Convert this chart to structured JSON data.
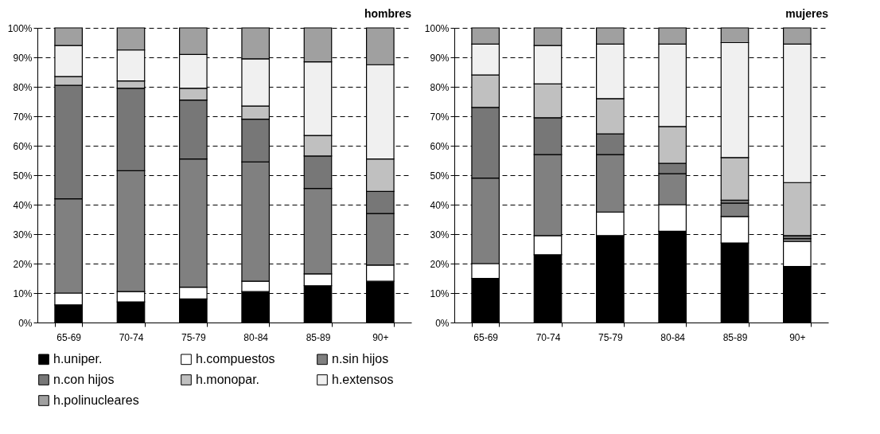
{
  "chart_data": [
    {
      "type": "bar",
      "title": "hombres",
      "stacked": true,
      "grid": "y",
      "legend": "bottom",
      "categories": [
        "65-69",
        "70-74",
        "75-79",
        "80-84",
        "85-89",
        "90+"
      ],
      "ylim": [
        0,
        100
      ],
      "yticks": [
        {
          "value": 0,
          "label": "0%"
        },
        {
          "value": 10,
          "label": "10%"
        },
        {
          "value": 20,
          "label": "20%"
        },
        {
          "value": 30,
          "label": "30%"
        },
        {
          "value": 40,
          "label": "40%"
        },
        {
          "value": 50,
          "label": "50%"
        },
        {
          "value": 60,
          "label": "60%"
        },
        {
          "value": 70,
          "label": "70%"
        },
        {
          "value": 80,
          "label": "80%"
        },
        {
          "value": 90,
          "label": "90%"
        },
        {
          "value": 100,
          "label": "100%"
        }
      ],
      "series": [
        {
          "name": "h.uniper.",
          "color": "#000000",
          "values": [
            6,
            7,
            8,
            10.5,
            12.5,
            14
          ]
        },
        {
          "name": "h.compuestos",
          "color": "#ffffff",
          "values": [
            4,
            3.5,
            4,
            3.5,
            4,
            5.5
          ]
        },
        {
          "name": "n.sin hijos",
          "color": "#808080",
          "values": [
            32,
            41,
            43.5,
            40.5,
            29,
            17.5
          ]
        },
        {
          "name": "n.con hijos",
          "color": "#777777",
          "values": [
            38.5,
            28,
            20,
            14.5,
            11,
            7.5
          ]
        },
        {
          "name": "h.monopar.",
          "color": "#c0c0c0",
          "values": [
            3,
            2.5,
            4,
            4.5,
            7,
            11
          ]
        },
        {
          "name": "h.extensos",
          "color": "#f0f0f0",
          "values": [
            10.5,
            10.5,
            11.5,
            16,
            25,
            32
          ]
        },
        {
          "name": "h.polinucleares",
          "color": "#a0a0a0",
          "values": [
            6,
            7.5,
            9,
            10.5,
            11.5,
            12.5
          ]
        }
      ]
    },
    {
      "type": "bar",
      "title": "mujeres",
      "stacked": true,
      "grid": "y",
      "categories": [
        "65-69",
        "70-74",
        "75-79",
        "80-84",
        "85-89",
        "90+"
      ],
      "ylim": [
        0,
        100
      ],
      "yticks": [
        {
          "value": 0,
          "label": "0%"
        },
        {
          "value": 10,
          "label": "10%"
        },
        {
          "value": 20,
          "label": "20%"
        },
        {
          "value": 30,
          "label": "30%"
        },
        {
          "value": 40,
          "label": "40%"
        },
        {
          "value": 50,
          "label": "50%"
        },
        {
          "value": 60,
          "label": "60%"
        },
        {
          "value": 70,
          "label": "70%"
        },
        {
          "value": 80,
          "label": "80%"
        },
        {
          "value": 90,
          "label": "90%"
        },
        {
          "value": 100,
          "label": "100%"
        }
      ],
      "series": [
        {
          "color": "#000000",
          "values": [
            15,
            23,
            29.5,
            31,
            27,
            19
          ]
        },
        {
          "color": "#ffffff",
          "values": [
            5,
            6.5,
            8,
            9,
            9,
            8.5
          ]
        },
        {
          "color": "#808080",
          "values": [
            29,
            27.5,
            19.5,
            10.5,
            4.5,
            1
          ]
        },
        {
          "color": "#777777",
          "values": [
            24,
            12.5,
            7,
            3.5,
            1,
            1
          ]
        },
        {
          "color": "#c0c0c0",
          "values": [
            11,
            11.5,
            12,
            12.5,
            14.5,
            18
          ]
        },
        {
          "color": "#f0f0f0",
          "values": [
            10.5,
            13,
            18.5,
            28,
            39,
            47
          ]
        },
        {
          "color": "#a0a0a0",
          "values": [
            5.5,
            6,
            5.5,
            5.5,
            5,
            5.5
          ]
        }
      ]
    }
  ]
}
